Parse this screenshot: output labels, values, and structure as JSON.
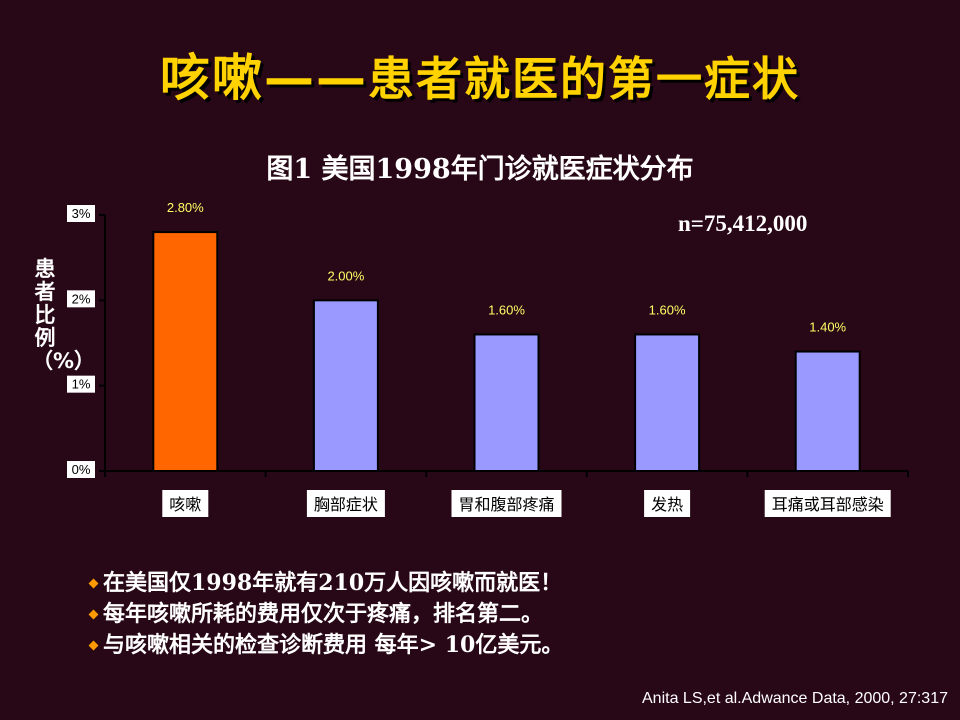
{
  "slide": {
    "title_part1": "咳嗽——",
    "title_part2": "患者就医的第一症状",
    "sample_size": "n=75,412,000",
    "citation": "Anita LS,et al.Adwance Data, 2000, 27:317"
  },
  "bullets": [
    "在美国仅1998年就有210万人因咳嗽而就医！",
    "每年咳嗽所耗的费用仅次于疼痛，排名第二。",
    "与咳嗽相关的检查诊断费用 每年> 10亿美元。"
  ],
  "colors": {
    "background": "#280816",
    "title": "#ffd200",
    "highlight_bar": "#ff6600",
    "bar": "#9999ff",
    "value_label": "#ffff66",
    "bullet_marker": "#ff9a00"
  },
  "chart_data": {
    "type": "bar",
    "title": "图1  美国1998年门诊就医症状分布",
    "ylabel": "患者比例（%）",
    "xlabel": "",
    "categories": [
      "咳嗽",
      "胸部症状",
      "胃和腹部疼痛",
      "发热",
      "耳痛或耳部感染"
    ],
    "values": [
      2.8,
      2.0,
      1.6,
      1.6,
      1.4
    ],
    "value_labels": [
      "2.80%",
      "2.00%",
      "1.60%",
      "1.60%",
      "1.40%"
    ],
    "yticks": [
      "0%",
      "1%",
      "2%",
      "3%"
    ],
    "ylim": [
      0,
      3
    ],
    "highlight_index": 0,
    "grid": false,
    "legend": "none"
  }
}
